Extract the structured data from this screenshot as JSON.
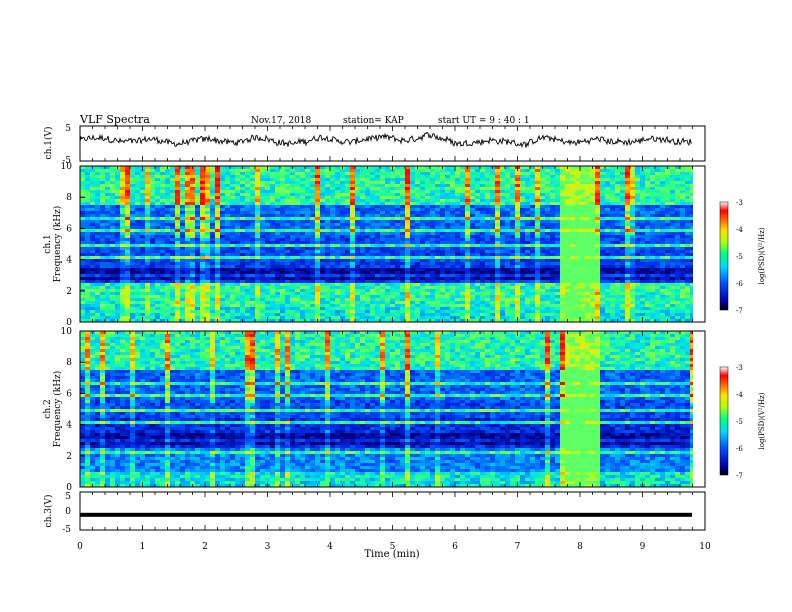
{
  "header": {
    "title": "VLF Spectra",
    "date": "Nov.17, 2018",
    "station": "station= KAP",
    "start": "start  UT =   9 : 40 : 1"
  },
  "chart_data": [
    {
      "type": "line",
      "ylabel": "ch.1(V)",
      "ylim": [
        -5,
        5
      ],
      "yticks": [
        "5",
        "-5"
      ],
      "xlim": [
        0,
        10
      ],
      "trace_level": 0.8,
      "trace_amplitude": 1.8
    },
    {
      "type": "heatmap",
      "ylabel_top": "ch.1",
      "ylabel": "Frequency (kHz)",
      "ylim": [
        0,
        10
      ],
      "yticks": [
        "0",
        "2",
        "4",
        "6",
        "8",
        "10"
      ],
      "xlim": [
        0,
        10
      ],
      "bright_band_x": [
        7.75,
        8.25
      ],
      "colorbar": {
        "label": "log(PSD)(V²/Hz)",
        "ticks": [
          "-3",
          "-4",
          "-5",
          "-6",
          "-7"
        ],
        "range": [
          -7,
          -3
        ]
      }
    },
    {
      "type": "heatmap",
      "ylabel_top": "ch.2",
      "ylabel": "Frequency (kHz)",
      "ylim": [
        0,
        10
      ],
      "yticks": [
        "0",
        "2",
        "4",
        "6",
        "8",
        "10"
      ],
      "xlim": [
        0,
        10
      ],
      "bright_band_x": [
        7.75,
        8.25
      ],
      "colorbar": {
        "label": "log(PSD)(V²/Hz)",
        "ticks": [
          "-3",
          "-4",
          "-5",
          "-6",
          "-7"
        ],
        "range": [
          -7,
          -3
        ]
      }
    },
    {
      "type": "line",
      "ylabel": "ch.3(V)",
      "ylim": [
        -5,
        5
      ],
      "yticks": [
        "5",
        "0",
        "-5"
      ],
      "xlim": [
        0,
        10
      ],
      "trace_level": -1
    }
  ],
  "xaxis": {
    "label": "Time  (min)",
    "ticks": [
      "0",
      "1",
      "2",
      "3",
      "4",
      "5",
      "6",
      "7",
      "8",
      "9",
      "10"
    ]
  }
}
